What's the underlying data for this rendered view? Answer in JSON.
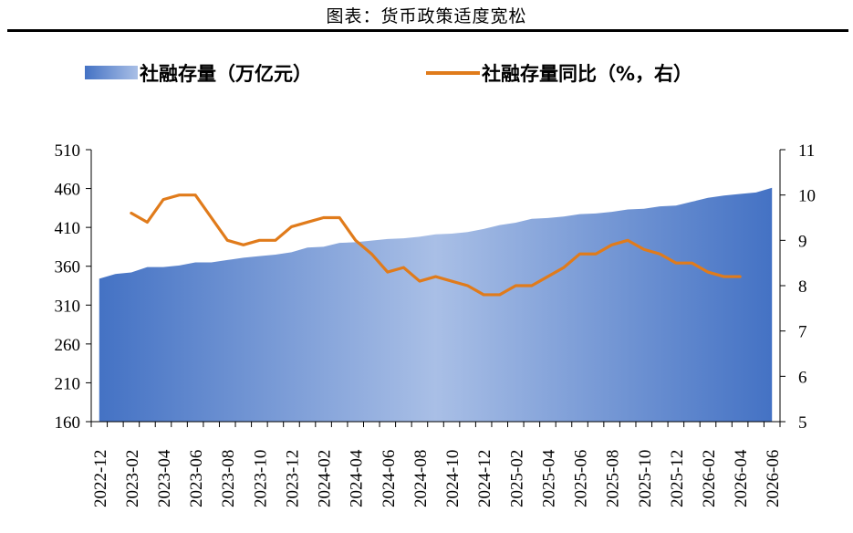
{
  "title": "图表：货币政策适度宽松",
  "chart_data": {
    "type": "area+line",
    "x_labels": [
      "2022-12",
      "2023-02",
      "2023-04",
      "2023-06",
      "2023-08",
      "2023-10",
      "2023-12",
      "2024-02",
      "2024-04",
      "2024-06",
      "2024-08",
      "2024-10",
      "2024-12",
      "2025-02",
      "2025-04",
      "2025-06",
      "2025-08",
      "2025-10",
      "2025-12",
      "2026-02",
      "2026-04",
      "2026-06"
    ],
    "x_months": [
      "2022-12",
      "2023-01",
      "2023-02",
      "2023-03",
      "2023-04",
      "2023-05",
      "2023-06",
      "2023-07",
      "2023-08",
      "2023-09",
      "2023-10",
      "2023-11",
      "2023-12",
      "2024-01",
      "2024-02",
      "2024-03",
      "2024-04",
      "2024-05",
      "2024-06",
      "2024-07",
      "2024-08",
      "2024-09",
      "2024-10",
      "2024-11",
      "2024-12",
      "2025-01",
      "2025-02",
      "2025-03",
      "2025-04",
      "2025-05",
      "2025-06",
      "2025-07",
      "2025-08",
      "2025-09",
      "2025-10",
      "2025-11",
      "2025-12",
      "2026-01",
      "2026-02",
      "2026-03",
      "2026-04",
      "2026-05",
      "2026-06"
    ],
    "series": [
      {
        "name": "社融存量（万亿元）",
        "type": "area",
        "axis": "left",
        "color_light": "#a9bfe6",
        "color_dark": "#4472c4",
        "values": [
          344,
          350,
          352,
          359,
          359,
          361,
          365,
          365,
          368,
          371,
          373,
          375,
          378,
          384,
          385,
          390,
          391,
          393,
          395,
          396,
          398,
          401,
          402,
          404,
          408,
          413,
          416,
          421,
          422,
          424,
          427,
          428,
          430,
          433,
          434,
          437,
          438,
          443,
          448,
          451,
          453,
          455,
          461
        ]
      },
      {
        "name": "社融存量同比（%，右）",
        "type": "line",
        "axis": "right",
        "color": "#e07b1b",
        "start_index": 2,
        "values": [
          9.6,
          9.4,
          9.9,
          10.0,
          10.0,
          9.5,
          9.0,
          8.9,
          9.0,
          9.0,
          9.3,
          9.4,
          9.5,
          9.5,
          9.0,
          8.7,
          8.3,
          8.4,
          8.1,
          8.2,
          8.1,
          8.0,
          7.8,
          7.8,
          8.0,
          8.0,
          8.2,
          8.4,
          8.7,
          8.7,
          8.9,
          9.0,
          8.8,
          8.7,
          8.5,
          8.5,
          8.3,
          8.2,
          8.2
        ]
      }
    ],
    "y_left": {
      "min": 160,
      "max": 510,
      "ticks": [
        "160",
        "210",
        "260",
        "310",
        "360",
        "410",
        "460",
        "510"
      ]
    },
    "y_right": {
      "min": 5,
      "max": 11,
      "ticks": [
        "5",
        "6",
        "7",
        "8",
        "9",
        "10",
        "11"
      ]
    },
    "legend_position": "top"
  }
}
